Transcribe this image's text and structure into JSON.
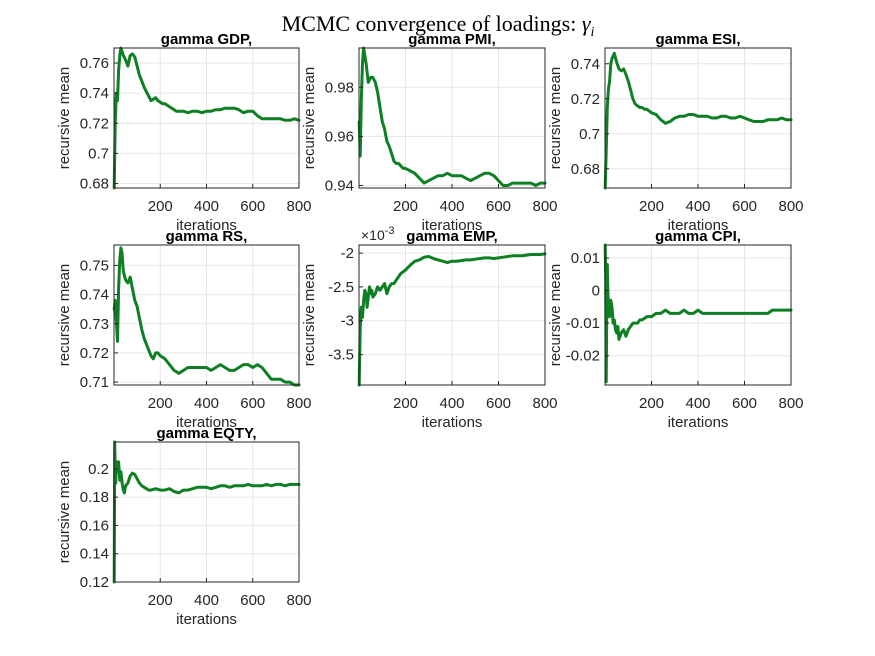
{
  "figure": {
    "title": "MCMC convergence of loadings: ",
    "title_symbol": "γ",
    "title_subscript": "i",
    "line_color": "#0e7f22"
  },
  "chart_data": [
    {
      "type": "line",
      "title": "gamma GDP,",
      "xlabel": "iterations",
      "ylabel": "recursive mean",
      "xlim": [
        0,
        800
      ],
      "ylim": [
        0.677,
        0.77
      ],
      "xticks": [
        200,
        400,
        600,
        800
      ],
      "yticks": [
        0.68,
        0.7,
        0.72,
        0.74,
        0.76
      ],
      "ytick_labels": [
        "0.68",
        "0.7",
        "0.72",
        "0.74",
        "0.76"
      ],
      "grid": true,
      "series": [
        {
          "x": [
            1,
            5,
            10,
            15,
            20,
            25,
            30,
            40,
            50,
            60,
            70,
            80,
            90,
            100,
            110,
            120,
            130,
            140,
            150,
            160,
            170,
            180,
            190,
            200,
            210,
            220,
            230,
            240,
            250,
            260,
            270,
            280,
            300,
            320,
            340,
            360,
            380,
            400,
            420,
            440,
            460,
            480,
            500,
            520,
            540,
            560,
            580,
            600,
            620,
            640,
            660,
            680,
            700,
            720,
            740,
            760,
            780,
            800
          ],
          "y": [
            0.677,
            0.72,
            0.74,
            0.735,
            0.755,
            0.765,
            0.77,
            0.765,
            0.762,
            0.758,
            0.765,
            0.766,
            0.764,
            0.758,
            0.752,
            0.748,
            0.744,
            0.741,
            0.738,
            0.735,
            0.736,
            0.737,
            0.735,
            0.734,
            0.733,
            0.733,
            0.732,
            0.731,
            0.73,
            0.729,
            0.728,
            0.728,
            0.728,
            0.727,
            0.728,
            0.728,
            0.727,
            0.728,
            0.728,
            0.729,
            0.729,
            0.73,
            0.73,
            0.73,
            0.729,
            0.727,
            0.728,
            0.728,
            0.725,
            0.723,
            0.723,
            0.723,
            0.723,
            0.723,
            0.722,
            0.722,
            0.723,
            0.722
          ]
        }
      ]
    },
    {
      "type": "line",
      "title": "gamma PMI,",
      "xlabel": "iterations",
      "ylabel": "recursive mean",
      "xlim": [
        0,
        800
      ],
      "ylim": [
        0.939,
        0.996
      ],
      "xticks": [
        200,
        400,
        600,
        800
      ],
      "yticks": [
        0.94,
        0.96,
        0.98
      ],
      "ytick_labels": [
        "0.94",
        "0.96",
        "0.98"
      ],
      "grid": true,
      "series": [
        {
          "x": [
            1,
            5,
            10,
            15,
            20,
            25,
            30,
            40,
            50,
            60,
            70,
            80,
            90,
            100,
            110,
            120,
            130,
            140,
            150,
            160,
            170,
            180,
            190,
            200,
            220,
            240,
            260,
            280,
            300,
            320,
            340,
            360,
            380,
            400,
            420,
            440,
            460,
            480,
            500,
            520,
            540,
            560,
            580,
            600,
            620,
            640,
            660,
            680,
            700,
            720,
            740,
            760,
            780,
            800
          ],
          "y": [
            0.966,
            0.952,
            0.975,
            0.99,
            0.996,
            0.993,
            0.99,
            0.982,
            0.984,
            0.984,
            0.982,
            0.978,
            0.972,
            0.966,
            0.963,
            0.958,
            0.956,
            0.953,
            0.95,
            0.949,
            0.949,
            0.948,
            0.947,
            0.947,
            0.946,
            0.945,
            0.943,
            0.941,
            0.942,
            0.943,
            0.944,
            0.944,
            0.945,
            0.944,
            0.944,
            0.944,
            0.943,
            0.942,
            0.943,
            0.944,
            0.945,
            0.945,
            0.944,
            0.942,
            0.94,
            0.94,
            0.941,
            0.941,
            0.941,
            0.941,
            0.941,
            0.94,
            0.941,
            0.941
          ]
        }
      ]
    },
    {
      "type": "line",
      "title": "gamma ESI,",
      "xlabel": "iterations",
      "ylabel": "recursive mean",
      "xlim": [
        0,
        800
      ],
      "ylim": [
        0.669,
        0.749
      ],
      "xticks": [
        200,
        400,
        600,
        800
      ],
      "yticks": [
        0.68,
        0.7,
        0.72,
        0.74
      ],
      "ytick_labels": [
        "0.68",
        "0.7",
        "0.72",
        "0.74"
      ],
      "grid": true,
      "series": [
        {
          "x": [
            1,
            5,
            10,
            15,
            20,
            25,
            30,
            40,
            50,
            60,
            70,
            80,
            90,
            100,
            110,
            120,
            130,
            140,
            150,
            160,
            170,
            180,
            190,
            200,
            220,
            240,
            260,
            280,
            300,
            320,
            340,
            360,
            380,
            400,
            420,
            440,
            460,
            480,
            500,
            520,
            540,
            560,
            580,
            600,
            620,
            640,
            660,
            680,
            700,
            720,
            740,
            760,
            780,
            800
          ],
          "y": [
            0.669,
            0.69,
            0.715,
            0.726,
            0.73,
            0.74,
            0.743,
            0.746,
            0.741,
            0.737,
            0.736,
            0.737,
            0.734,
            0.73,
            0.725,
            0.72,
            0.717,
            0.716,
            0.715,
            0.715,
            0.714,
            0.714,
            0.713,
            0.712,
            0.711,
            0.708,
            0.706,
            0.707,
            0.709,
            0.71,
            0.71,
            0.711,
            0.711,
            0.71,
            0.71,
            0.71,
            0.709,
            0.709,
            0.71,
            0.71,
            0.709,
            0.709,
            0.71,
            0.709,
            0.708,
            0.707,
            0.707,
            0.707,
            0.708,
            0.708,
            0.708,
            0.709,
            0.708,
            0.708
          ]
        }
      ]
    },
    {
      "type": "line",
      "title": "gamma RS,",
      "xlabel": "iterations",
      "ylabel": "recursive mean",
      "xlim": [
        0,
        800
      ],
      "ylim": [
        0.709,
        0.757
      ],
      "xticks": [
        200,
        400,
        600,
        800
      ],
      "yticks": [
        0.71,
        0.72,
        0.73,
        0.74,
        0.75
      ],
      "ytick_labels": [
        "0.71",
        "0.72",
        "0.73",
        "0.74",
        "0.75"
      ],
      "grid": true,
      "series": [
        {
          "x": [
            1,
            5,
            10,
            15,
            20,
            25,
            30,
            35,
            40,
            50,
            60,
            70,
            80,
            90,
            100,
            110,
            120,
            130,
            140,
            150,
            160,
            170,
            180,
            190,
            200,
            220,
            240,
            260,
            280,
            300,
            320,
            340,
            360,
            380,
            400,
            420,
            440,
            460,
            480,
            500,
            520,
            540,
            560,
            580,
            600,
            620,
            640,
            660,
            680,
            700,
            720,
            740,
            760,
            780,
            800
          ],
          "y": [
            0.735,
            0.738,
            0.731,
            0.724,
            0.742,
            0.752,
            0.756,
            0.754,
            0.748,
            0.745,
            0.744,
            0.746,
            0.742,
            0.738,
            0.736,
            0.732,
            0.728,
            0.725,
            0.723,
            0.721,
            0.719,
            0.718,
            0.72,
            0.72,
            0.719,
            0.718,
            0.716,
            0.714,
            0.713,
            0.714,
            0.715,
            0.715,
            0.715,
            0.715,
            0.715,
            0.714,
            0.715,
            0.716,
            0.715,
            0.714,
            0.714,
            0.715,
            0.716,
            0.716,
            0.715,
            0.716,
            0.715,
            0.713,
            0.711,
            0.711,
            0.711,
            0.71,
            0.71,
            0.709,
            0.709
          ]
        }
      ]
    },
    {
      "type": "line",
      "title": "gamma EMP,",
      "xlabel": "iterations",
      "ylabel": "recursive mean",
      "xlim": [
        0,
        800
      ],
      "ylim": [
        -3.95,
        -1.88
      ],
      "multiplier": "×10",
      "multiplier_exponent": "-3",
      "xticks": [
        200,
        400,
        600,
        800
      ],
      "yticks": [
        -3.5,
        -3,
        -2.5,
        -2
      ],
      "ytick_labels": [
        "-3.5",
        "-3",
        "-2.5",
        "-2"
      ],
      "grid": true,
      "series": [
        {
          "x": [
            1,
            5,
            10,
            15,
            20,
            25,
            30,
            35,
            40,
            45,
            50,
            55,
            60,
            70,
            80,
            90,
            100,
            110,
            120,
            130,
            140,
            150,
            160,
            180,
            200,
            220,
            240,
            260,
            280,
            300,
            320,
            340,
            360,
            380,
            400,
            420,
            440,
            460,
            480,
            500,
            520,
            540,
            560,
            580,
            600,
            620,
            640,
            660,
            680,
            700,
            720,
            740,
            760,
            780,
            800
          ],
          "y": [
            -3.95,
            -3.1,
            -2.8,
            -2.95,
            -2.7,
            -2.55,
            -2.6,
            -2.8,
            -2.65,
            -2.5,
            -2.6,
            -2.55,
            -2.65,
            -2.6,
            -2.5,
            -2.55,
            -2.5,
            -2.45,
            -2.6,
            -2.5,
            -2.45,
            -2.45,
            -2.4,
            -2.3,
            -2.25,
            -2.18,
            -2.12,
            -2.1,
            -2.06,
            -2.05,
            -2.08,
            -2.1,
            -2.12,
            -2.14,
            -2.12,
            -2.12,
            -2.11,
            -2.1,
            -2.1,
            -2.09,
            -2.08,
            -2.07,
            -2.07,
            -2.08,
            -2.07,
            -2.06,
            -2.05,
            -2.04,
            -2.04,
            -2.04,
            -2.03,
            -2.02,
            -2.02,
            -2.02,
            -2.01
          ]
        }
      ]
    },
    {
      "type": "line",
      "title": "gamma CPI,",
      "xlabel": "iterations",
      "ylabel": "recursive mean",
      "xlim": [
        0,
        800
      ],
      "ylim": [
        -0.029,
        0.014
      ],
      "xticks": [
        200,
        400,
        600,
        800
      ],
      "yticks": [
        -0.02,
        -0.01,
        0,
        0.01
      ],
      "ytick_labels": [
        "-0.02",
        "-0.01",
        "0",
        "0.01"
      ],
      "grid": true,
      "series": [
        {
          "x": [
            1,
            3,
            5,
            8,
            10,
            12,
            15,
            20,
            25,
            30,
            35,
            40,
            45,
            50,
            55,
            60,
            70,
            80,
            90,
            100,
            110,
            120,
            130,
            140,
            150,
            160,
            180,
            200,
            220,
            240,
            260,
            280,
            300,
            320,
            340,
            360,
            380,
            400,
            420,
            440,
            460,
            480,
            500,
            520,
            540,
            560,
            580,
            600,
            620,
            640,
            660,
            680,
            700,
            720,
            740,
            760,
            780,
            800
          ],
          "y": [
            0.014,
            0.003,
            -0.028,
            -0.002,
            0.008,
            0.0,
            -0.005,
            -0.008,
            -0.003,
            -0.005,
            -0.01,
            -0.009,
            -0.012,
            -0.013,
            -0.011,
            -0.015,
            -0.013,
            -0.012,
            -0.014,
            -0.012,
            -0.011,
            -0.01,
            -0.01,
            -0.01,
            -0.009,
            -0.009,
            -0.008,
            -0.008,
            -0.007,
            -0.007,
            -0.006,
            -0.007,
            -0.007,
            -0.007,
            -0.006,
            -0.007,
            -0.007,
            -0.006,
            -0.007,
            -0.007,
            -0.007,
            -0.007,
            -0.007,
            -0.007,
            -0.007,
            -0.007,
            -0.007,
            -0.007,
            -0.007,
            -0.007,
            -0.007,
            -0.007,
            -0.007,
            -0.006,
            -0.006,
            -0.006,
            -0.006,
            -0.006
          ]
        }
      ]
    },
    {
      "type": "line",
      "title": "gamma EQTY,",
      "xlabel": "iterations",
      "ylabel": "recursive mean",
      "xlim": [
        0,
        800
      ],
      "ylim": [
        0.12,
        0.219
      ],
      "xticks": [
        200,
        400,
        600,
        800
      ],
      "yticks": [
        0.12,
        0.14,
        0.16,
        0.18,
        0.2
      ],
      "ytick_labels": [
        "0.12",
        "0.14",
        "0.16",
        "0.18",
        "0.2"
      ],
      "grid": true,
      "series": [
        {
          "x": [
            1,
            3,
            5,
            8,
            10,
            12,
            15,
            20,
            25,
            30,
            35,
            40,
            45,
            50,
            60,
            70,
            80,
            90,
            100,
            110,
            120,
            130,
            140,
            150,
            160,
            180,
            200,
            220,
            240,
            260,
            280,
            300,
            320,
            340,
            360,
            380,
            400,
            420,
            440,
            460,
            480,
            500,
            520,
            540,
            560,
            580,
            600,
            620,
            640,
            660,
            680,
            700,
            720,
            740,
            760,
            780,
            800
          ],
          "y": [
            0.12,
            0.219,
            0.2,
            0.19,
            0.205,
            0.198,
            0.2,
            0.205,
            0.192,
            0.198,
            0.19,
            0.185,
            0.183,
            0.188,
            0.19,
            0.195,
            0.197,
            0.196,
            0.193,
            0.19,
            0.188,
            0.187,
            0.186,
            0.185,
            0.185,
            0.186,
            0.185,
            0.185,
            0.186,
            0.184,
            0.183,
            0.185,
            0.185,
            0.186,
            0.187,
            0.187,
            0.187,
            0.186,
            0.187,
            0.188,
            0.188,
            0.187,
            0.188,
            0.188,
            0.188,
            0.189,
            0.188,
            0.188,
            0.188,
            0.189,
            0.188,
            0.189,
            0.189,
            0.188,
            0.189,
            0.189,
            0.189
          ]
        }
      ]
    }
  ]
}
